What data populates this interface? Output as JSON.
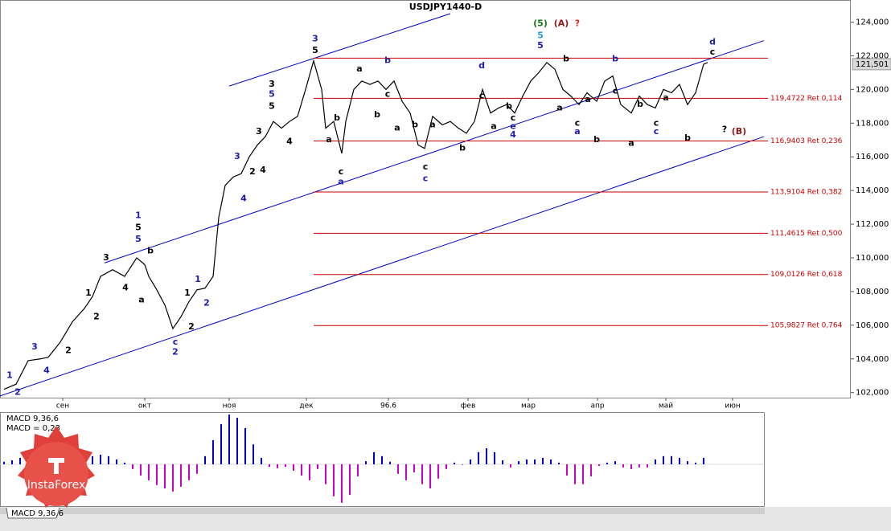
{
  "chart_data": [
    {
      "type": "line",
      "title": "USDJPY1440-D",
      "color": "#000000",
      "x": [
        1,
        4,
        7,
        10,
        12,
        15,
        18,
        21,
        23,
        25,
        28,
        31,
        34,
        36,
        37,
        39,
        41,
        43,
        45,
        47,
        49,
        51,
        53,
        54.4,
        56,
        58,
        60,
        62,
        64,
        66,
        68,
        70,
        72,
        74,
        76,
        78,
        80,
        81,
        83,
        85,
        86,
        88,
        90,
        92,
        94,
        96,
        98,
        100,
        102,
        104,
        105.6,
        107.6,
        110,
        112,
        114,
        116,
        118,
        120,
        122,
        124,
        126,
        128,
        130,
        132,
        134,
        136,
        138,
        140,
        142,
        144,
        146,
        148.4,
        150.4,
        152.4,
        154.4,
        157,
        159,
        161,
        163,
        165,
        167,
        169,
        171,
        173,
        175,
        176
      ],
      "values": [
        102.2,
        102.5,
        103.9,
        104.0,
        104.1,
        105.0,
        106.2,
        107.0,
        107.7,
        108.9,
        109.3,
        108.9,
        110.0,
        109.6,
        108.9,
        108.1,
        107.2,
        105.8,
        106.5,
        107.4,
        108.1,
        108.2,
        108.9,
        112.4,
        114.3,
        114.8,
        115.0,
        116.0,
        116.7,
        117.2,
        118.1,
        117.7,
        118.1,
        118.4,
        120.0,
        121.7,
        120.0,
        117.7,
        118.1,
        116.2,
        118.1,
        120.0,
        120.5,
        120.3,
        120.5,
        120.0,
        120.5,
        119.3,
        118.6,
        116.7,
        116.5,
        118.4,
        117.9,
        118.1,
        117.7,
        117.4,
        118.1,
        120.0,
        118.6,
        118.9,
        119.1,
        118.6,
        119.6,
        120.5,
        121.0,
        121.6,
        121.2,
        120.0,
        119.6,
        119.1,
        119.8,
        119.3,
        120.5,
        120.8,
        119.1,
        118.6,
        119.6,
        119.1,
        118.9,
        120.0,
        119.8,
        120.3,
        119.1,
        119.8,
        121.5,
        121.6
      ],
      "xlim": [
        0,
        211.6
      ],
      "xticks": [
        {
          "value": 15.6,
          "label": "сен"
        },
        {
          "value": 36,
          "label": "окт"
        },
        {
          "value": 57,
          "label": "ноя"
        },
        {
          "value": 76.2,
          "label": "дек"
        },
        96.6,
        {
          "value": 116.4,
          "label": "фев"
        },
        {
          "value": 131.4,
          "label": "мар"
        },
        {
          "value": 148.6,
          "label": "апр"
        },
        {
          "value": 165.6,
          "label": "май"
        },
        {
          "value": 182.2,
          "label": "июн"
        }
      ],
      "ylim": [
        101.7,
        124.5
      ],
      "yticks": [
        {
          "value": 102,
          "label": "102,000"
        },
        {
          "value": 104,
          "label": "104,000"
        },
        {
          "value": 106,
          "label": "106,000"
        },
        {
          "value": 108,
          "label": "108,000"
        },
        {
          "value": 110,
          "label": "110,000"
        },
        {
          "value": 112,
          "label": "112,000"
        },
        {
          "value": 114,
          "label": "114,000"
        },
        {
          "value": 116,
          "label": "116,000"
        },
        {
          "value": 118,
          "label": "118,000"
        },
        {
          "value": 120,
          "label": "120,000"
        },
        {
          "value": 122,
          "label": "122,000"
        },
        {
          "value": 124,
          "label": "124,000"
        }
      ],
      "last_price": {
        "value": 121.501,
        "label": "121,501"
      },
      "resistance": 121.86,
      "levels": [
        {
          "value": 119.4722,
          "label": "119,4722 Ret 0,114"
        },
        {
          "value": 116.9403,
          "label": "116,9403 Ret 0,236"
        },
        {
          "value": 113.9104,
          "label": "113,9104 Ret 0,382"
        },
        {
          "value": 111.4615,
          "label": "111,4615 Ret 0,500"
        },
        {
          "value": 109.0126,
          "label": "109,0126 Ret 0,618"
        },
        {
          "value": 105.9827,
          "label": "105,9827 Ret 0,764"
        }
      ],
      "level_color": "#cc0000",
      "trendline_color": "#0000cc",
      "trendlines": [
        [
          57,
          120.2,
          112,
          124.5
        ],
        [
          26,
          109.7,
          190,
          122.9
        ],
        [
          0,
          101.8,
          190,
          117.2
        ]
      ],
      "annotations": [
        {
          "text": "1",
          "x": 2.4,
          "y": 103.0,
          "color": "#1c1cb4"
        },
        {
          "text": "2",
          "x": 4.4,
          "y": 102.0,
          "color": "#1c1cb4"
        },
        {
          "text": "3",
          "x": 8.6,
          "y": 104.7,
          "color": "#1c1cb4"
        },
        {
          "text": "4",
          "x": 11.6,
          "y": 103.3,
          "color": "#1c1cb4"
        },
        {
          "text": "2",
          "x": 17,
          "y": 104.5,
          "color": "#000000"
        },
        {
          "text": "1",
          "x": 22,
          "y": 107.9,
          "color": "#000000"
        },
        {
          "text": "2",
          "x": 24,
          "y": 106.5,
          "color": "#000000"
        },
        {
          "text": "3",
          "x": 26.4,
          "y": 110.0,
          "color": "#000000"
        },
        {
          "text": "4",
          "x": 31.2,
          "y": 108.2,
          "color": "#000000"
        },
        {
          "text": "1",
          "x": 34.4,
          "y": 112.5,
          "color": "#1c1cb4"
        },
        {
          "text": "5",
          "x": 34.4,
          "y": 111.8,
          "color": "#000000"
        },
        {
          "text": "5",
          "x": 34.4,
          "y": 111.1,
          "color": "#1c1cb4"
        },
        {
          "text": "a",
          "x": 35.2,
          "y": 107.5,
          "color": "#000000"
        },
        {
          "text": "b",
          "x": 37.4,
          "y": 110.4,
          "color": "#000000"
        },
        {
          "text": "c",
          "x": 43.6,
          "y": 105.0,
          "color": "#1c1cb4"
        },
        {
          "text": "2",
          "x": 43.6,
          "y": 104.4,
          "color": "#1c1cb4"
        },
        {
          "text": "1",
          "x": 46.6,
          "y": 107.9,
          "color": "#000000"
        },
        {
          "text": "2",
          "x": 47.6,
          "y": 105.9,
          "color": "#000000"
        },
        {
          "text": "1",
          "x": 49.2,
          "y": 108.7,
          "color": "#1c1cb4"
        },
        {
          "text": "2",
          "x": 51.4,
          "y": 107.3,
          "color": "#1c1cb4"
        },
        {
          "text": "3",
          "x": 59,
          "y": 116.0,
          "color": "#1c1cb4"
        },
        {
          "text": "4",
          "x": 60.6,
          "y": 113.5,
          "color": "#1c1cb4"
        },
        {
          "text": "2",
          "x": 62.8,
          "y": 115.1,
          "color": "#000000"
        },
        {
          "text": "3",
          "x": 64.4,
          "y": 117.5,
          "color": "#000000"
        },
        {
          "text": "4",
          "x": 65.4,
          "y": 115.2,
          "color": "#000000"
        },
        {
          "text": "3",
          "x": 67.6,
          "y": 120.3,
          "color": "#000000"
        },
        {
          "text": "5",
          "x": 67.6,
          "y": 119.7,
          "color": "#1c1cb4"
        },
        {
          "text": "5",
          "x": 67.6,
          "y": 119.0,
          "color": "#000000"
        },
        {
          "text": "4",
          "x": 72,
          "y": 116.9,
          "color": "#000000"
        },
        {
          "text": "3",
          "x": 78.4,
          "y": 123.0,
          "color": "#1c1cb4"
        },
        {
          "text": "5",
          "x": 78.4,
          "y": 122.3,
          "color": "#000000"
        },
        {
          "text": "a",
          "x": 81.8,
          "y": 117.0,
          "color": "#000000"
        },
        {
          "text": "b",
          "x": 83.8,
          "y": 118.3,
          "color": "#000000"
        },
        {
          "text": "c",
          "x": 84.8,
          "y": 115.1,
          "color": "#000000"
        },
        {
          "text": "a",
          "x": 84.8,
          "y": 114.5,
          "color": "#1c1cb4"
        },
        {
          "text": "a",
          "x": 89.4,
          "y": 121.2,
          "color": "#000000"
        },
        {
          "text": "b",
          "x": 93.8,
          "y": 118.5,
          "color": "#000000"
        },
        {
          "text": "b",
          "x": 96.4,
          "y": 121.7,
          "color": "#1c1cb4"
        },
        {
          "text": "c",
          "x": 96.4,
          "y": 119.7,
          "color": "#000000"
        },
        {
          "text": "a",
          "x": 98.8,
          "y": 117.7,
          "color": "#000000"
        },
        {
          "text": "b",
          "x": 103.2,
          "y": 117.9,
          "color": "#000000"
        },
        {
          "text": "c",
          "x": 105.8,
          "y": 115.4,
          "color": "#000000"
        },
        {
          "text": "c",
          "x": 105.8,
          "y": 114.7,
          "color": "#1c1cb4"
        },
        {
          "text": "a",
          "x": 107.6,
          "y": 117.9,
          "color": "#000000"
        },
        {
          "text": "b",
          "x": 115,
          "y": 116.5,
          "color": "#000000"
        },
        {
          "text": "d",
          "x": 119.8,
          "y": 121.4,
          "color": "#1c1cb4"
        },
        {
          "text": "c",
          "x": 119.8,
          "y": 119.6,
          "color": "#000000"
        },
        {
          "text": "a",
          "x": 122.8,
          "y": 117.8,
          "color": "#000000"
        },
        {
          "text": "b",
          "x": 126.6,
          "y": 119.0,
          "color": "#000000"
        },
        {
          "text": "c",
          "x": 127.6,
          "y": 118.3,
          "color": "#000000"
        },
        {
          "text": "e",
          "x": 127.6,
          "y": 117.8,
          "color": "#1c1cb4"
        },
        {
          "text": "4",
          "x": 127.6,
          "y": 117.3,
          "color": "#1c1cb4"
        },
        {
          "text": "(5)",
          "x": 134.4,
          "y": 123.9,
          "color": "#1a7a1a"
        },
        {
          "text": "(A)",
          "x": 139.6,
          "y": 123.9,
          "color": "#8b1a1a"
        },
        {
          "text": "?",
          "x": 143.6,
          "y": 123.9,
          "color": "#e02020"
        },
        {
          "text": "5",
          "x": 134.4,
          "y": 123.2,
          "color": "#2aa0d8"
        },
        {
          "text": "5",
          "x": 134.4,
          "y": 122.6,
          "color": "#1c1cb4"
        },
        {
          "text": "a",
          "x": 139.2,
          "y": 118.9,
          "color": "#000000"
        },
        {
          "text": "b",
          "x": 140.8,
          "y": 121.8,
          "color": "#000000"
        },
        {
          "text": "c",
          "x": 143.6,
          "y": 118.0,
          "color": "#000000"
        },
        {
          "text": "a",
          "x": 143.6,
          "y": 117.5,
          "color": "#1c1cb4"
        },
        {
          "text": "a",
          "x": 146.2,
          "y": 119.4,
          "color": "#000000"
        },
        {
          "text": "b",
          "x": 148.4,
          "y": 117.0,
          "color": "#000000"
        },
        {
          "text": "b",
          "x": 153,
          "y": 121.8,
          "color": "#1c1cb4"
        },
        {
          "text": "c",
          "x": 153,
          "y": 119.9,
          "color": "#000000"
        },
        {
          "text": "a",
          "x": 157,
          "y": 116.8,
          "color": "#000000"
        },
        {
          "text": "b",
          "x": 159.2,
          "y": 119.1,
          "color": "#000000"
        },
        {
          "text": "c",
          "x": 163.2,
          "y": 118.0,
          "color": "#000000"
        },
        {
          "text": "c",
          "x": 163.2,
          "y": 117.5,
          "color": "#1c1cb4"
        },
        {
          "text": "a",
          "x": 165.6,
          "y": 119.5,
          "color": "#000000"
        },
        {
          "text": "b",
          "x": 171,
          "y": 117.1,
          "color": "#000000"
        },
        {
          "text": "d",
          "x": 177.2,
          "y": 122.8,
          "color": "#1c1cb4"
        },
        {
          "text": "c",
          "x": 177.2,
          "y": 122.2,
          "color": "#000000"
        },
        {
          "text": "?",
          "x": 180.2,
          "y": 117.6,
          "color": "#000000"
        },
        {
          "text": "(B)",
          "x": 183.8,
          "y": 117.5,
          "color": "#8b1a1a"
        }
      ]
    },
    {
      "type": "bar",
      "title": "MACD 9,36,6",
      "subtitle": "MACD = 0,23",
      "positive_color": "#0000c8",
      "negative_color": "#c800c8",
      "x": [
        1,
        3,
        5,
        7,
        9,
        11,
        13,
        15,
        17,
        19,
        21,
        23,
        25,
        27,
        29,
        31,
        33,
        35,
        37,
        39,
        41,
        43,
        45,
        47,
        49,
        51,
        53,
        55,
        57,
        59,
        61,
        63,
        65,
        67,
        69,
        71,
        73,
        75,
        77,
        79,
        81,
        83,
        85,
        87,
        89,
        91,
        93,
        95,
        97,
        99,
        101,
        103,
        105,
        107,
        109,
        111,
        113,
        115,
        117,
        119,
        121,
        123,
        125,
        127,
        129,
        131,
        133,
        135,
        137,
        139,
        141,
        143,
        145,
        147,
        149,
        151,
        153,
        155,
        157,
        159,
        161,
        163,
        165,
        167,
        169,
        171,
        173,
        175
      ],
      "values": [
        0.09,
        0.14,
        0.23,
        0.29,
        0.34,
        0.34,
        0.34,
        0.29,
        0.29,
        0.29,
        0.29,
        0.29,
        0.34,
        0.29,
        0.17,
        0.06,
        -0.17,
        -0.4,
        -0.57,
        -0.74,
        -0.86,
        -0.97,
        -0.8,
        -0.57,
        -0.34,
        0.29,
        0.86,
        1.43,
        1.77,
        1.66,
        1.29,
        0.71,
        0.23,
        -0.09,
        -0.14,
        -0.09,
        -0.23,
        -0.4,
        -0.57,
        -0.17,
        -0.71,
        -1.14,
        -1.37,
        -1.09,
        -0.43,
        0.11,
        0.43,
        0.29,
        0.09,
        -0.34,
        -0.57,
        -0.29,
        -0.71,
        -0.86,
        -0.51,
        -0.17,
        0.06,
        0,
        0.17,
        0.43,
        0.57,
        0.43,
        0.14,
        -0.11,
        0.11,
        0.17,
        0.17,
        0.23,
        0.17,
        0.06,
        -0.4,
        -0.71,
        -0.71,
        -0.43,
        -0.06,
        0.06,
        0.11,
        -0.11,
        -0.17,
        -0.11,
        -0.11,
        0.17,
        0.29,
        0.29,
        0.23,
        0.11,
        0.06,
        0.23
      ],
      "xlim": [
        0,
        211.6
      ],
      "ylim": [
        -1.49,
        1.86
      ]
    }
  ],
  "watermark": "InstaForex"
}
